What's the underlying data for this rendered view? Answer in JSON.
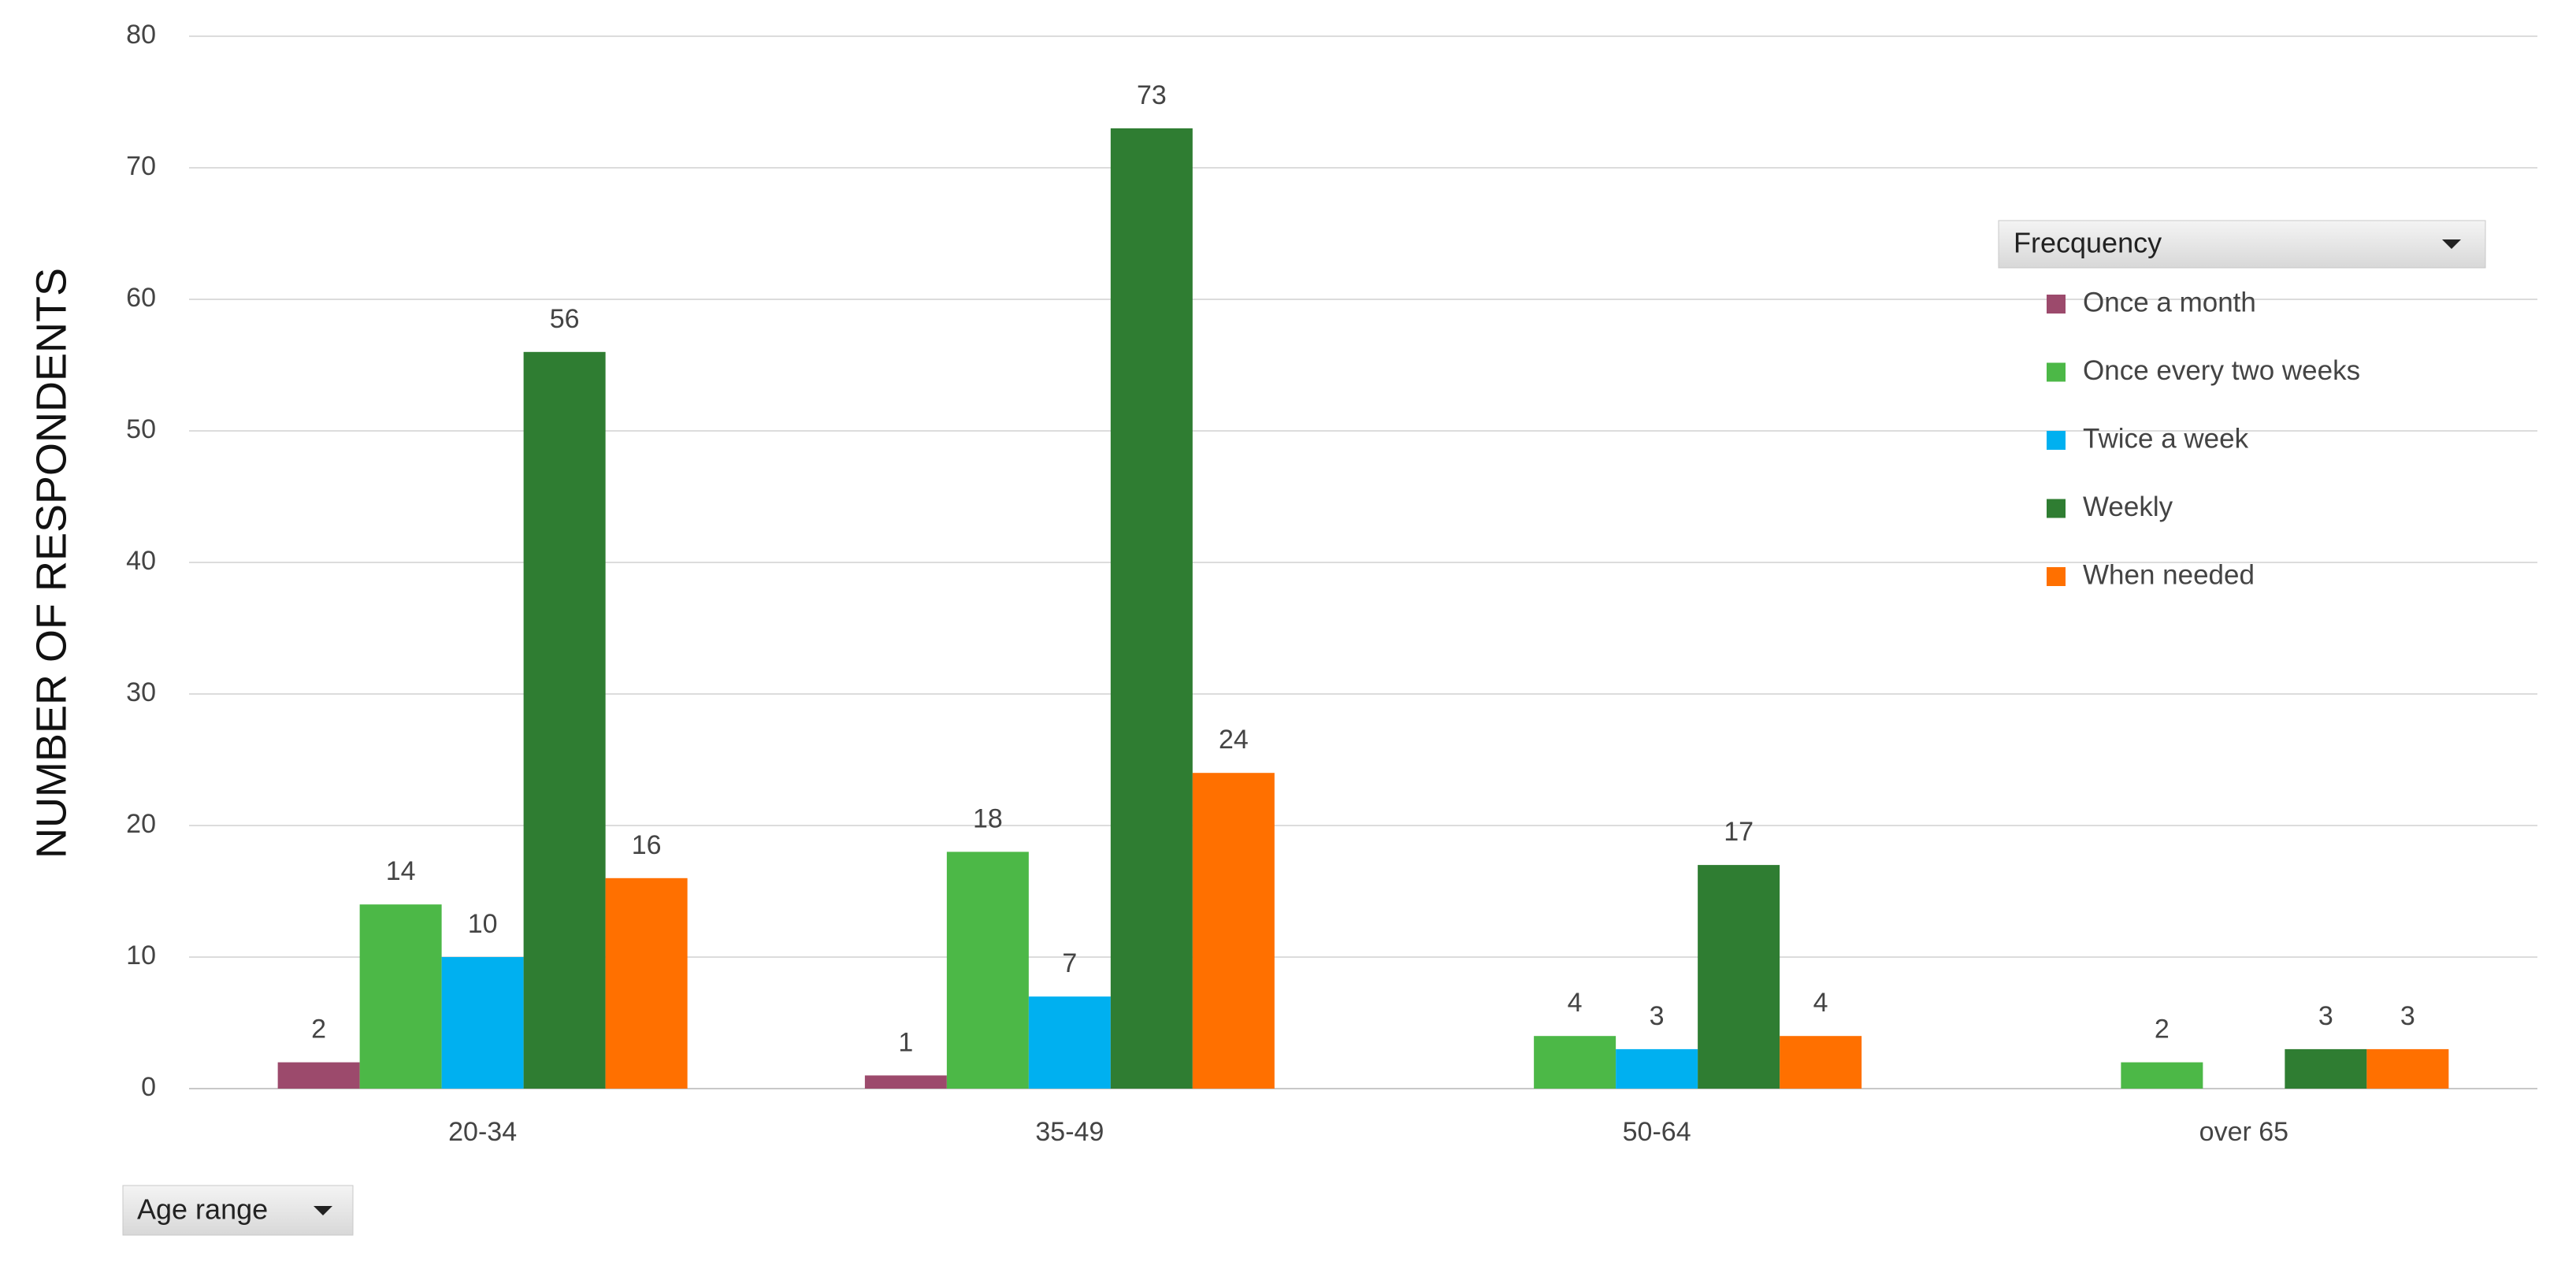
{
  "chart_data": {
    "type": "bar",
    "y_label": "NUMBER OF RESPONDENTS",
    "legend_title": "Frecquency",
    "category_filter": "Age range",
    "categories": [
      "20-34",
      "35-49",
      "50-64",
      "over 65"
    ],
    "series": [
      {
        "name": "Once a month",
        "color": "#9c4a6c",
        "values": [
          2,
          1,
          null,
          null
        ]
      },
      {
        "name": "Once every two weeks",
        "color": "#4cb847",
        "values": [
          14,
          18,
          4,
          2
        ]
      },
      {
        "name": "Twice a week",
        "color": "#00b0f0",
        "values": [
          10,
          7,
          3,
          null
        ]
      },
      {
        "name": "Weekly",
        "color": "#2f7d32",
        "values": [
          56,
          73,
          17,
          3
        ]
      },
      {
        "name": "When needed",
        "color": "#ff7000",
        "values": [
          16,
          24,
          4,
          3
        ]
      }
    ],
    "ylim": [
      0,
      80
    ],
    "yticks": [
      0,
      10,
      20,
      30,
      40,
      50,
      60,
      70,
      80
    ],
    "grid": true,
    "legend_position": "right"
  }
}
